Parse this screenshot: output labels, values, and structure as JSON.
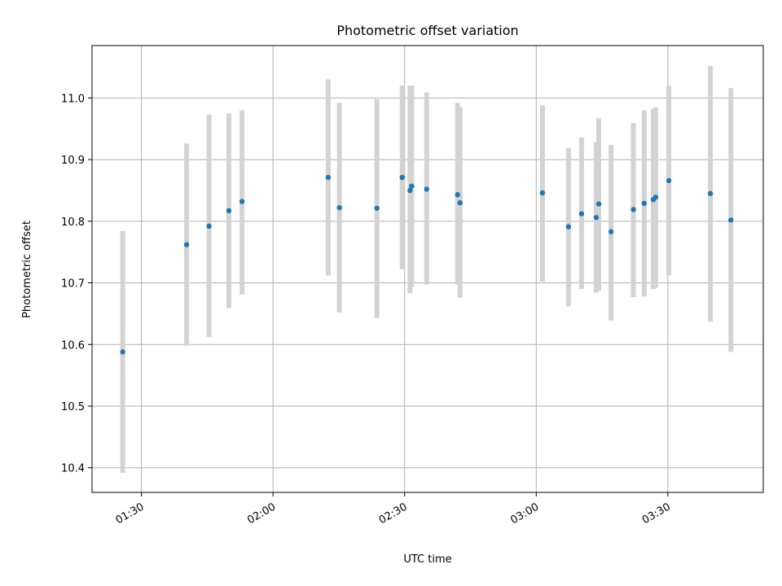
{
  "chart_data": {
    "type": "scatter",
    "title": "Photometric offset variation",
    "xlabel": "UTC time",
    "ylabel": "Photometric offset",
    "x_unit": "UTC time (HH:MM)",
    "xlim": [
      "01:18:45",
      "03:51:45"
    ],
    "ylim": [
      10.36,
      11.085
    ],
    "xticks": [
      "01:30",
      "02:00",
      "02:30",
      "03:00",
      "03:30"
    ],
    "yticks": [
      10.4,
      10.5,
      10.6,
      10.7,
      10.8,
      10.9,
      11.0
    ],
    "grid": true,
    "points": [
      {
        "x": "01:25:44",
        "y": 10.588,
        "yerr_low": 10.392,
        "yerr_high": 10.784
      },
      {
        "x": "01:40:18",
        "y": 10.762,
        "yerr_low": 10.598,
        "yerr_high": 10.926
      },
      {
        "x": "01:45:25",
        "y": 10.792,
        "yerr_low": 10.612,
        "yerr_high": 10.973
      },
      {
        "x": "01:49:56",
        "y": 10.817,
        "yerr_low": 10.659,
        "yerr_high": 10.975
      },
      {
        "x": "01:52:56",
        "y": 10.832,
        "yerr_low": 10.681,
        "yerr_high": 10.98
      },
      {
        "x": "02:12:35",
        "y": 10.871,
        "yerr_low": 10.712,
        "yerr_high": 11.03
      },
      {
        "x": "02:15:08",
        "y": 10.822,
        "yerr_low": 10.652,
        "yerr_high": 10.992
      },
      {
        "x": "02:23:41",
        "y": 10.821,
        "yerr_low": 10.643,
        "yerr_high": 10.998
      },
      {
        "x": "02:29:27",
        "y": 10.871,
        "yerr_low": 10.722,
        "yerr_high": 11.02
      },
      {
        "x": "02:31:14",
        "y": 10.85,
        "yerr_low": 10.683,
        "yerr_high": 11.02
      },
      {
        "x": "02:31:37",
        "y": 10.857,
        "yerr_low": 10.693,
        "yerr_high": 11.02
      },
      {
        "x": "02:35:01",
        "y": 10.852,
        "yerr_low": 10.697,
        "yerr_high": 11.009
      },
      {
        "x": "02:42:04",
        "y": 10.843,
        "yerr_low": 10.697,
        "yerr_high": 10.992
      },
      {
        "x": "02:42:38",
        "y": 10.83,
        "yerr_low": 10.676,
        "yerr_high": 10.985
      },
      {
        "x": "03:01:25",
        "y": 10.846,
        "yerr_low": 10.702,
        "yerr_high": 10.988
      },
      {
        "x": "03:07:21",
        "y": 10.791,
        "yerr_low": 10.662,
        "yerr_high": 10.919
      },
      {
        "x": "03:10:20",
        "y": 10.812,
        "yerr_low": 10.69,
        "yerr_high": 10.936
      },
      {
        "x": "03:13:41",
        "y": 10.806,
        "yerr_low": 10.684,
        "yerr_high": 10.928
      },
      {
        "x": "03:14:15",
        "y": 10.828,
        "yerr_low": 10.687,
        "yerr_high": 10.967
      },
      {
        "x": "03:17:03",
        "y": 10.783,
        "yerr_low": 10.639,
        "yerr_high": 10.924
      },
      {
        "x": "03:22:09",
        "y": 10.819,
        "yerr_low": 10.677,
        "yerr_high": 10.959
      },
      {
        "x": "03:24:37",
        "y": 10.829,
        "yerr_low": 10.678,
        "yerr_high": 10.98
      },
      {
        "x": "03:26:41",
        "y": 10.835,
        "yerr_low": 10.69,
        "yerr_high": 10.982
      },
      {
        "x": "03:27:14",
        "y": 10.839,
        "yerr_low": 10.692,
        "yerr_high": 10.985
      },
      {
        "x": "03:30:13",
        "y": 10.866,
        "yerr_low": 10.712,
        "yerr_high": 11.02
      },
      {
        "x": "03:39:42",
        "y": 10.845,
        "yerr_low": 10.637,
        "yerr_high": 11.052
      },
      {
        "x": "03:44:22",
        "y": 10.802,
        "yerr_low": 10.588,
        "yerr_high": 11.016
      }
    ]
  },
  "colors": {
    "point": "#1f77b4",
    "errorbar": "#d3d3d3",
    "grid": "#b0b0b0",
    "frame": "#000000"
  }
}
